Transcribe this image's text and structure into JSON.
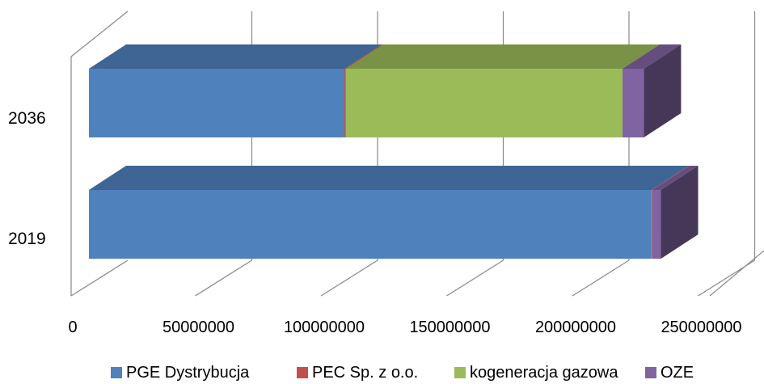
{
  "chart_data": {
    "type": "bar",
    "orientation": "horizontal",
    "stacked": true,
    "style": "3d",
    "categories": [
      "2019",
      "2036"
    ],
    "series": [
      {
        "name": "PGE Dystrybucja",
        "color": "#4F81BD",
        "values": [
          223700000,
          101600000
        ]
      },
      {
        "name": "PEC Sp. z o.o.",
        "color": "#C0504D",
        "values": [
          300000,
          600000
        ]
      },
      {
        "name": "kogeneracja gazowa",
        "color": "#9BBB59",
        "values": [
          0,
          110000000
        ]
      },
      {
        "name": "OZE",
        "color": "#8064A2",
        "values": [
          3500000,
          8500000
        ]
      }
    ],
    "x_ticks": [
      "0",
      "50000000",
      "100000000",
      "150000000",
      "200000000",
      "250000000"
    ],
    "xlim": [
      0,
      250000000
    ],
    "grid": true,
    "legend_position": "bottom"
  }
}
